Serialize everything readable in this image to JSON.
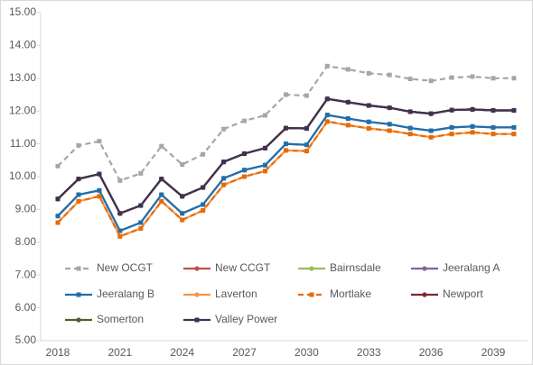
{
  "chart_data": {
    "type": "line",
    "categories": [
      "2018",
      null,
      null,
      "2021",
      null,
      null,
      "2024",
      null,
      null,
      "2027",
      null,
      null,
      "2030",
      null,
      null,
      "2033",
      null,
      null,
      "2036",
      null,
      null,
      "2039",
      null
    ],
    "ylim": [
      5,
      15
    ],
    "yticks": [
      {
        "value": 5,
        "label": "5.00"
      },
      {
        "value": 6,
        "label": "6.00"
      },
      {
        "value": 7,
        "label": "7.00"
      },
      {
        "value": 8,
        "label": "8.00"
      },
      {
        "value": 9,
        "label": "9.00"
      },
      {
        "value": 10,
        "label": "10.00"
      },
      {
        "value": 11,
        "label": "11.00"
      },
      {
        "value": 12,
        "label": "12.00"
      },
      {
        "value": 13,
        "label": "13.00"
      },
      {
        "value": 14,
        "label": "14.00"
      },
      {
        "value": 15,
        "label": "15.00"
      }
    ],
    "series": [
      {
        "name": "New OCGT",
        "color": "#a6a6a6",
        "dashed": true,
        "marker": "square",
        "values": [
          10.32,
          10.95,
          11.08,
          9.88,
          10.1,
          10.93,
          10.37,
          10.68,
          11.45,
          11.7,
          11.87,
          12.5,
          12.47,
          13.37,
          13.27,
          13.15,
          13.1,
          12.98,
          12.92,
          13.02,
          13.05,
          13.0,
          13.0
        ]
      },
      {
        "name": "New CCGT",
        "color": "#c0504d",
        "dashed": false,
        "marker": "circle",
        "values": [
          9.32,
          9.93,
          10.08,
          8.88,
          9.12,
          9.93,
          9.4,
          9.67,
          10.45,
          10.7,
          10.87,
          11.48,
          11.47,
          12.37,
          12.27,
          12.17,
          12.1,
          11.98,
          11.92,
          12.03,
          12.05,
          12.02,
          12.02
        ]
      },
      {
        "name": "Bairnsdale",
        "color": "#9bbb59",
        "dashed": false,
        "marker": "circle",
        "values": [
          9.32,
          9.93,
          10.08,
          8.88,
          9.12,
          9.93,
          9.4,
          9.67,
          10.45,
          10.7,
          10.87,
          11.48,
          11.47,
          12.37,
          12.27,
          12.17,
          12.1,
          11.98,
          11.92,
          12.03,
          12.05,
          12.02,
          12.02
        ]
      },
      {
        "name": "Jeeralang A",
        "color": "#8064a2",
        "dashed": false,
        "marker": "circle",
        "values": [
          8.8,
          9.45,
          9.58,
          8.35,
          8.6,
          9.45,
          8.88,
          9.15,
          9.95,
          10.2,
          10.35,
          11.0,
          10.97,
          11.88,
          11.77,
          11.67,
          11.6,
          11.48,
          11.4,
          11.5,
          11.53,
          11.5,
          11.5
        ]
      },
      {
        "name": "Jeeralang B",
        "color": "#1f6fa9",
        "dashed": false,
        "marker": "square",
        "values": [
          8.8,
          9.45,
          9.58,
          8.35,
          8.6,
          9.45,
          8.88,
          9.15,
          9.95,
          10.2,
          10.35,
          11.0,
          10.97,
          11.88,
          11.77,
          11.67,
          11.6,
          11.48,
          11.4,
          11.5,
          11.53,
          11.5,
          11.5
        ]
      },
      {
        "name": "Laverton",
        "color": "#f79646",
        "dashed": false,
        "marker": "circle",
        "values": [
          8.6,
          9.25,
          9.4,
          8.18,
          8.42,
          9.25,
          8.68,
          8.97,
          9.75,
          10.0,
          10.17,
          10.8,
          10.78,
          11.68,
          11.57,
          11.47,
          11.4,
          11.3,
          11.2,
          11.3,
          11.35,
          11.3,
          11.3
        ]
      },
      {
        "name": "Mortlake",
        "color": "#e46c0a",
        "dashed": true,
        "marker": "square",
        "values": [
          8.6,
          9.25,
          9.4,
          8.18,
          8.42,
          9.25,
          8.68,
          8.97,
          9.75,
          10.0,
          10.17,
          10.8,
          10.78,
          11.68,
          11.57,
          11.47,
          11.4,
          11.3,
          11.2,
          11.3,
          11.35,
          11.3,
          11.3
        ]
      },
      {
        "name": "Newport",
        "color": "#7b2c2a",
        "dashed": false,
        "marker": "circle",
        "values": [
          9.32,
          9.93,
          10.08,
          8.88,
          9.12,
          9.93,
          9.4,
          9.67,
          10.45,
          10.7,
          10.87,
          11.48,
          11.47,
          12.37,
          12.27,
          12.17,
          12.1,
          11.98,
          11.92,
          12.03,
          12.05,
          12.02,
          12.02
        ]
      },
      {
        "name": "Somerton",
        "color": "#4f6228",
        "dashed": false,
        "marker": "circle",
        "values": [
          9.32,
          9.93,
          10.08,
          8.88,
          9.12,
          9.93,
          9.4,
          9.67,
          10.45,
          10.7,
          10.87,
          11.48,
          11.47,
          12.37,
          12.27,
          12.17,
          12.1,
          11.98,
          11.92,
          12.03,
          12.05,
          12.02,
          12.02
        ]
      },
      {
        "name": "Valley Power",
        "color": "#403152",
        "dashed": false,
        "marker": "square",
        "values": [
          9.32,
          9.93,
          10.08,
          8.88,
          9.12,
          9.93,
          9.4,
          9.67,
          10.45,
          10.7,
          10.87,
          11.48,
          11.47,
          12.37,
          12.27,
          12.17,
          12.1,
          11.98,
          11.92,
          12.03,
          12.05,
          12.02,
          12.02
        ]
      }
    ]
  }
}
